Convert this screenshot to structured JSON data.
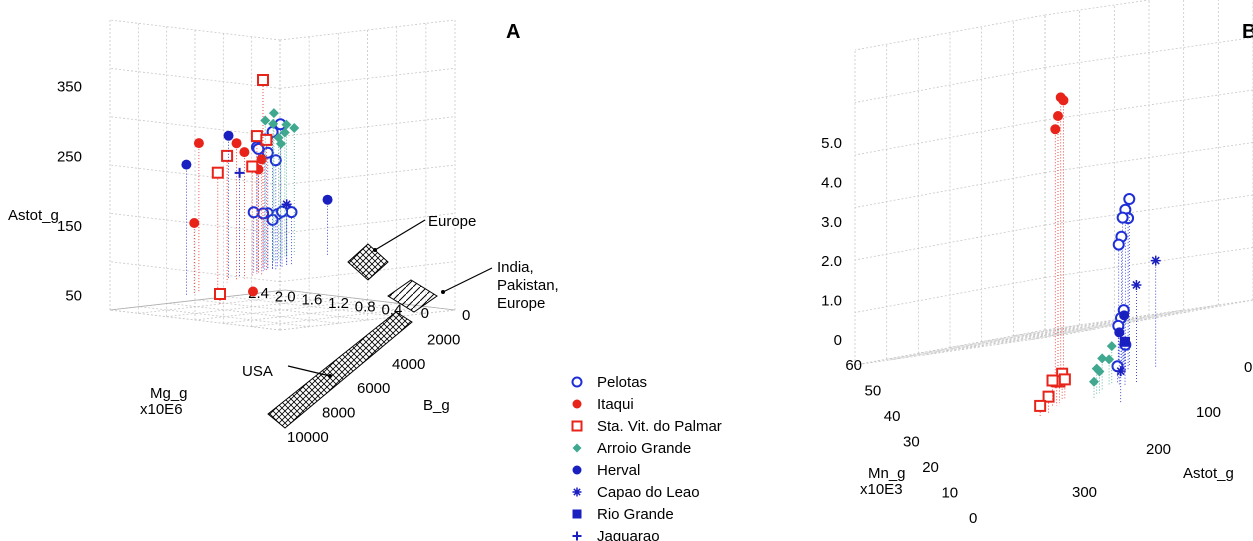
{
  "legend": [
    {
      "name": "Pelotas",
      "marker": "circle-open",
      "color": "#1f2fd8"
    },
    {
      "name": "Itaqui",
      "marker": "circle-filled",
      "color": "#e8231a"
    },
    {
      "name": "Sta. Vit. do Palmar",
      "marker": "square-open",
      "color": "#e8231a"
    },
    {
      "name": "Arroio Grande",
      "marker": "diamond-filled",
      "color": "#3fa88f"
    },
    {
      "name": "Herval",
      "marker": "circle-filled",
      "color": "#1a1fc0"
    },
    {
      "name": "Capao do Leao",
      "marker": "asterisk",
      "color": "#1a1fc0"
    },
    {
      "name": "Rio Grande",
      "marker": "square-filled",
      "color": "#1a1fc0"
    },
    {
      "name": "Jaguarao",
      "marker": "plus",
      "color": "#1a1fc0"
    }
  ],
  "chart_data": [
    {
      "type": "scatter",
      "panel_label": "A",
      "zlabel": "Astot_g",
      "ylabel": "Mg_g\nx10E6",
      "xlabel": "B_g",
      "z_ticks": [
        "350",
        "250",
        "150",
        "50"
      ],
      "y_ticks": [
        "2.4",
        "2.0",
        "1.6",
        "1.2",
        "0.8",
        "0.4",
        "0"
      ],
      "x_ticks": [
        "0",
        "2000",
        "4000",
        "6000",
        "8000",
        "10000"
      ],
      "xlim": [
        0,
        10000
      ],
      "ylim": [
        0,
        2.4
      ],
      "zlim": [
        50,
        350
      ],
      "annotations": [
        {
          "text": "Europe"
        },
        {
          "text": "India,\nPakistan,\nEurope"
        },
        {
          "text": "USA"
        }
      ],
      "series": [
        {
          "name": "Pelotas",
          "points": [
            [
              800,
              1.2,
              150
            ],
            [
              1000,
              1.1,
              145
            ],
            [
              1200,
              1.0,
              150
            ],
            [
              900,
              1.3,
              155
            ],
            [
              1100,
              1.2,
              140
            ],
            [
              1500,
              1.0,
              148
            ],
            [
              700,
              1.4,
              160
            ],
            [
              1300,
              1.1,
              152
            ],
            [
              800,
              1.2,
              260
            ],
            [
              1000,
              1.3,
              290
            ],
            [
              1100,
              1.2,
              300
            ],
            [
              900,
              1.4,
              280
            ],
            [
              1200,
              1.1,
              310
            ],
            [
              1300,
              1.2,
              250
            ],
            [
              600,
              1.3,
              270
            ]
          ]
        },
        {
          "name": "Itaqui",
          "points": [
            [
              500,
              2.3,
              180
            ],
            [
              400,
              2.2,
              320
            ],
            [
              1200,
              1.4,
              260
            ],
            [
              900,
              1.6,
              280
            ],
            [
              1000,
              1.4,
              240
            ],
            [
              800,
              1.7,
              300
            ],
            [
              3000,
              2.0,
              60
            ]
          ]
        },
        {
          "name": "Sta. Vit. do Palmar",
          "points": [
            [
              800,
              2.0,
              260
            ],
            [
              600,
              1.8,
              280
            ],
            [
              1000,
              1.5,
              250
            ],
            [
              900,
              1.4,
              300
            ],
            [
              1100,
              1.3,
              290
            ],
            [
              500,
              1.2,
              390
            ],
            [
              2500,
              2.4,
              70
            ]
          ]
        },
        {
          "name": "Arroio Grande",
          "points": [
            [
              300,
              0.9,
              270
            ],
            [
              400,
              0.8,
              290
            ],
            [
              500,
              0.7,
              280
            ],
            [
              350,
              1.0,
              300
            ],
            [
              450,
              0.9,
              260
            ],
            [
              250,
              1.1,
              310
            ],
            [
              400,
              1.0,
              320
            ],
            [
              300,
              0.8,
              275
            ]
          ]
        },
        {
          "name": "Herval",
          "points": [
            [
              400,
              2.4,
              290
            ],
            [
              300,
              1.7,
              310
            ],
            [
              1800,
              0.5,
              150
            ]
          ]
        },
        {
          "name": "Capao do Leao",
          "points": [
            [
              1200,
              1.0,
              160
            ]
          ]
        },
        {
          "name": "Rio Grande",
          "points": []
        },
        {
          "name": "Jaguarao",
          "points": [
            [
              600,
              1.6,
              240
            ]
          ]
        }
      ]
    },
    {
      "type": "scatter",
      "panel_label": "B",
      "zlabel": "",
      "ylabel": "Mn_g\nx10E3",
      "xlabel": "Astot_g",
      "z_ticks": [
        "5.0",
        "4.0",
        "3.0",
        "2.0",
        "1.0",
        "0"
      ],
      "y_ticks": [
        "60",
        "50",
        "40",
        "30",
        "20",
        "10",
        "0"
      ],
      "x_ticks": [
        "0",
        "100",
        "200",
        "300"
      ],
      "xlim": [
        0,
        350
      ],
      "ylim": [
        0,
        60
      ],
      "zlim": [
        0,
        5.0
      ],
      "series": [
        {
          "name": "Pelotas",
          "points": [
            [
              100,
              45,
              3.0
            ],
            [
              90,
              47,
              2.8
            ],
            [
              110,
              43,
              2.9
            ],
            [
              120,
              40,
              2.6
            ],
            [
              130,
              38,
              2.5
            ],
            [
              80,
              50,
              3.1
            ],
            [
              95,
              48,
              1.1
            ],
            [
              105,
              46,
              1.0
            ],
            [
              115,
              44,
              0.9
            ],
            [
              100,
              45,
              0.5
            ],
            [
              140,
              35,
              0.3
            ]
          ]
        },
        {
          "name": "Itaqui",
          "points": [
            [
              200,
              50,
              5.3
            ],
            [
              210,
              48,
              5.0
            ],
            [
              190,
              52,
              5.2
            ],
            [
              220,
              46,
              4.8
            ]
          ]
        },
        {
          "name": "Sta. Vit. do Palmar",
          "points": [
            [
              300,
              20,
              0.3
            ],
            [
              320,
              18,
              0.2
            ],
            [
              250,
              30,
              0.5
            ],
            [
              260,
              28,
              0.4
            ],
            [
              270,
              26,
              0.45
            ],
            [
              240,
              32,
              0.35
            ],
            [
              280,
              25,
              0.5
            ]
          ]
        },
        {
          "name": "Arroio Grande",
          "points": [
            [
              180,
              30,
              0.6
            ],
            [
              190,
              28,
              0.4
            ],
            [
              200,
              26,
              0.5
            ],
            [
              210,
              24,
              0.3
            ],
            [
              150,
              35,
              0.7
            ],
            [
              160,
              33,
              0.5
            ]
          ]
        },
        {
          "name": "Herval",
          "points": [
            [
              110,
              42,
              1.1
            ],
            [
              150,
              30,
              1.0
            ]
          ]
        },
        {
          "name": "Capao do Leao",
          "points": [
            [
              60,
              40,
              2.0
            ],
            [
              120,
              30,
              1.8
            ],
            [
              200,
              10,
              0.6
            ]
          ]
        },
        {
          "name": "Rio Grande",
          "points": [
            [
              140,
              30,
              0.8
            ]
          ]
        },
        {
          "name": "Jaguarao",
          "points": []
        }
      ]
    }
  ]
}
